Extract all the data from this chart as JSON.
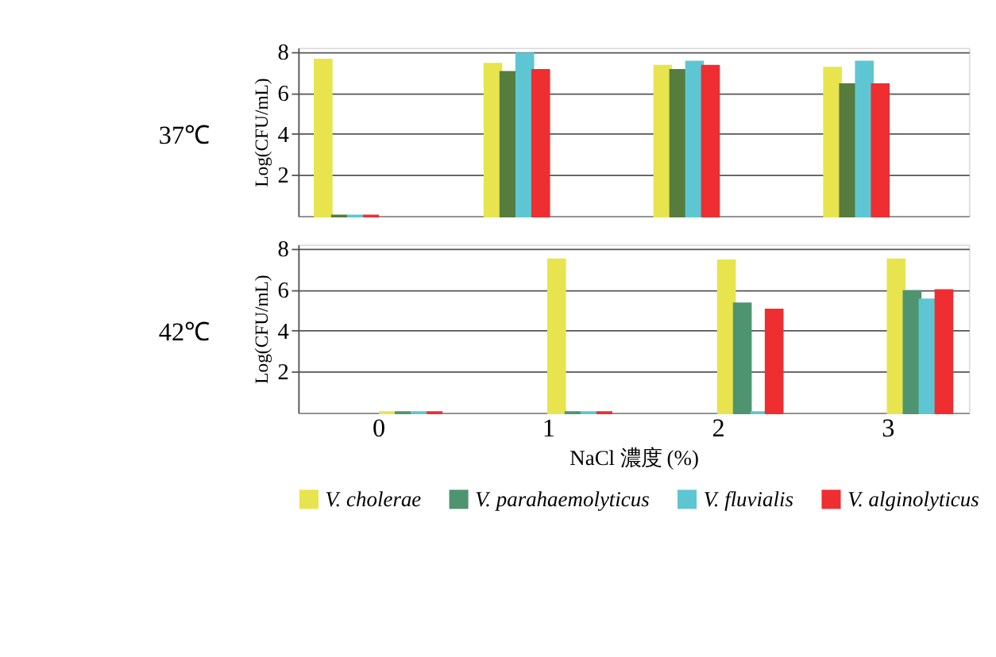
{
  "chart_data": [
    {
      "type": "bar",
      "title": "37℃",
      "ylabel": "Log(CFU/mL)",
      "categories": [
        "0",
        "1",
        "2",
        "3"
      ],
      "ylim": [
        0,
        8.2
      ],
      "yticks": [
        2,
        4,
        6,
        8
      ],
      "grid": "y",
      "legend": false,
      "tick_labels": "y",
      "series": [
        {
          "color": "#e8e44e",
          "values": [
            7.6,
            7.4,
            7.3,
            7.2
          ]
        },
        {
          "color": "#567c3e",
          "values": [
            0,
            7.0,
            7.1,
            6.4
          ]
        },
        {
          "color": "#5ec6d2",
          "values": [
            0,
            7.9,
            7.5,
            7.5
          ]
        },
        {
          "color": "#ee2e31",
          "values": [
            0,
            7.1,
            7.3,
            6.4
          ]
        }
      ]
    },
    {
      "type": "bar",
      "title": "42℃",
      "ylabel": "Log(CFU/mL)",
      "xlabel": "NaCl 濃度 (%)",
      "categories": [
        "0",
        "1",
        "2",
        "3"
      ],
      "ylim": [
        0,
        8.2
      ],
      "yticks": [
        2,
        4,
        6,
        8
      ],
      "grid": "y",
      "legend": "bottom",
      "series": [
        {
          "name": "V. cholerae",
          "color": "#e8e44e",
          "values": [
            0,
            7.45,
            7.4,
            7.45
          ]
        },
        {
          "name": "V. parahaemolyticus",
          "color": "#4e9470",
          "values": [
            0,
            0,
            5.3,
            5.9
          ]
        },
        {
          "name": "V. fluvialis",
          "color": "#5ec6d2",
          "values": [
            0,
            0,
            0,
            5.5
          ]
        },
        {
          "name": "V. alginolyticus",
          "color": "#ee2e31",
          "values": [
            0,
            0,
            5.0,
            5.95
          ]
        }
      ]
    }
  ]
}
